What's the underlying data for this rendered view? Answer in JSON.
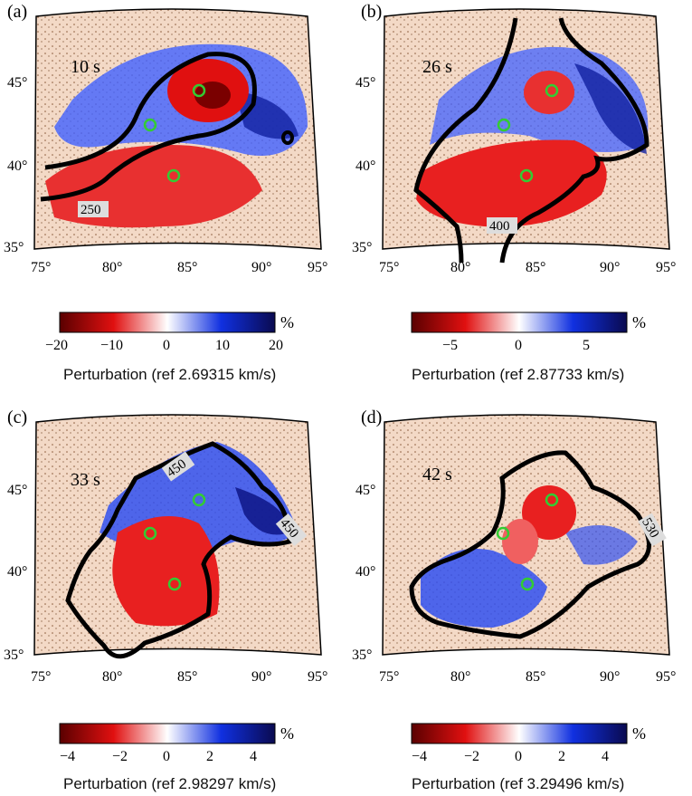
{
  "panels": [
    {
      "letter": "(a)",
      "period": "10 s",
      "contour_label": "250",
      "colorbar": {
        "ticks": [
          "−20",
          "−10",
          "0",
          "10",
          "20"
        ],
        "unit": "%",
        "label": "Perturbation (ref 2.69315 km/s)",
        "min": -20,
        "max": 20
      }
    },
    {
      "letter": "(b)",
      "period": "26 s",
      "contour_label": "400",
      "colorbar": {
        "ticks": [
          "−5",
          "0",
          "5"
        ],
        "unit": "%",
        "label": "Perturbation (ref 2.87733 km/s)",
        "min": -8,
        "max": 8
      }
    },
    {
      "letter": "(c)",
      "period": "33 s",
      "contour_label": "450",
      "contour_label_2": "450",
      "colorbar": {
        "ticks": [
          "−4",
          "−2",
          "0",
          "2",
          "4"
        ],
        "unit": "%",
        "label": "Perturbation (ref 2.98297 km/s)",
        "min": -5,
        "max": 5
      }
    },
    {
      "letter": "(d)",
      "period": "42 s",
      "contour_label": "530",
      "colorbar": {
        "ticks": [
          "−4",
          "−2",
          "0",
          "2",
          "4"
        ],
        "unit": "%",
        "label": "Perturbation (ref 3.29496 km/s)",
        "min": -5,
        "max": 5
      }
    }
  ],
  "axes": {
    "lon_ticks": [
      "75°",
      "80°",
      "85°",
      "90°",
      "95°"
    ],
    "lat_ticks": [
      "35°",
      "40°",
      "45°"
    ]
  },
  "colors": {
    "negative_dark": "#5a0000",
    "negative": "#e01010",
    "zero": "#ffffff",
    "positive": "#1030e0",
    "positive_dark": "#0a0a50",
    "station_marker": "#33cc33",
    "background_relief": "#f3d9c6"
  }
}
